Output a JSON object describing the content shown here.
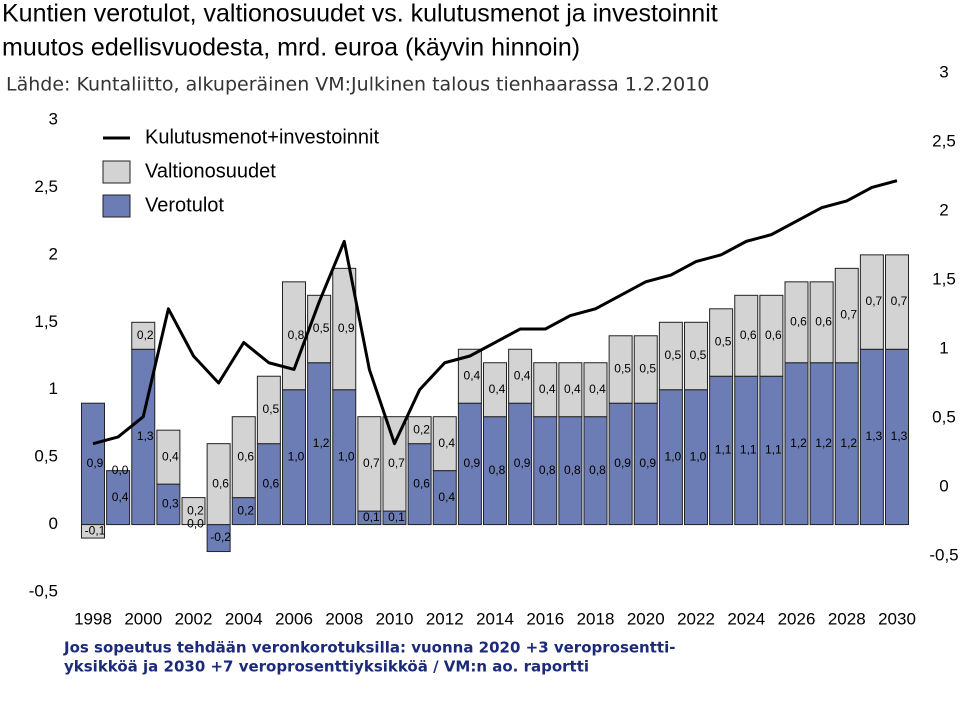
{
  "chart_data": {
    "type": "bar",
    "title": [
      "Kuntien verotulot, valtionosuudet vs. kulutusmenot ja investoinnit",
      "muutos edellisvuodesta, mrd. euroa (käyvin hinnoin)"
    ],
    "source": "Lähde: Kuntaliitto, alkuperäinen VM:Julkinen talous tienhaarassa 1.2.2010",
    "footnote": [
      "Jos sopeutus tehdään veronkorotuksilla: vuonna 2020 +3 veroprosentti-",
      "yksikköä  ja 2030 +7 veroprosenttiyksikköä / VM:n ao. raportti"
    ],
    "categories": [
      "1998",
      null,
      "2000",
      null,
      "2002",
      null,
      "2004",
      null,
      "2006",
      null,
      "2008",
      null,
      "2010",
      null,
      "2012",
      null,
      "2014",
      null,
      "2016",
      null,
      "2018",
      null,
      "2020",
      null,
      "2022",
      null,
      "2024",
      null,
      "2026",
      null,
      "2028",
      null,
      "2030"
    ],
    "series": [
      {
        "name": "Kulutusmenot+investoinnit",
        "type": "line",
        "color": "#000000",
        "values": [
          0.6,
          0.65,
          0.8,
          1.6,
          1.25,
          1.05,
          1.35,
          1.2,
          1.15,
          1.65,
          2.1,
          1.15,
          0.6,
          1.0,
          1.2,
          1.25,
          1.35,
          1.45,
          1.45,
          1.55,
          1.6,
          1.7,
          1.8,
          1.85,
          1.95,
          2.0,
          2.1,
          2.15,
          2.25,
          2.35,
          2.4,
          2.5,
          2.55
        ]
      },
      {
        "name": "Valtionosuudet",
        "type": "bar",
        "color": "#d3d3d3",
        "values": [
          -0.1,
          0.0,
          0.2,
          0.4,
          0.2,
          0.6,
          0.6,
          0.5,
          0.8,
          0.5,
          0.9,
          0.7,
          0.7,
          0.2,
          0.4,
          0.4,
          0.4,
          0.4,
          0.4,
          0.4,
          0.4,
          0.5,
          0.5,
          0.5,
          0.5,
          0.5,
          0.6,
          0.6,
          0.6,
          0.6,
          0.7,
          0.7,
          0.7
        ],
        "value_labels": [
          "-0,1",
          "0,0",
          "0,2",
          "0,4",
          "0,2",
          "0,6",
          "0,6",
          "0,5",
          "0,8",
          "0,5",
          "0,9",
          "0,7",
          "0,7",
          "0,2",
          "0,4",
          "0,4",
          "0,4",
          "0,4",
          "0,4",
          "0,4",
          "0,4",
          "0,5",
          "0,5",
          "0,5",
          "0,5",
          "0,5",
          "0,6",
          "0,6",
          "0,6",
          "0,6",
          "0,7",
          "0,7",
          "0,7"
        ]
      },
      {
        "name": "Verotulot",
        "type": "bar",
        "color": "#6c7cb4",
        "values": [
          0.9,
          0.4,
          1.3,
          0.3,
          0.0,
          -0.2,
          0.2,
          0.6,
          1.0,
          1.2,
          1.0,
          0.1,
          0.1,
          0.6,
          0.4,
          0.9,
          0.8,
          0.9,
          0.8,
          0.8,
          0.8,
          0.9,
          0.9,
          1.0,
          1.0,
          1.1,
          1.1,
          1.1,
          1.2,
          1.2,
          1.2,
          1.3,
          1.3
        ],
        "value_labels": [
          "0,9",
          "0,4",
          "1,3",
          "0,3",
          "0,0",
          "-0,2",
          "0,2",
          "0,6",
          "1,0",
          "1,2",
          "1,0",
          "0,1",
          "0,1",
          "0,6",
          "0,4",
          "0,9",
          "0,8",
          "0,9",
          "0,8",
          "0,8",
          "0,8",
          "0,9",
          "0,9",
          "1,0",
          "1,0",
          "1,1",
          "1,1",
          "1,1",
          "1,2",
          "1,2",
          "1,2",
          "1,3",
          "1,3"
        ]
      }
    ],
    "ylim": [
      -0.5,
      3
    ],
    "yticks": [
      {
        "value": -0.5,
        "label": "-0,5"
      },
      0,
      {
        "value": 0.5,
        "label": "0,5"
      },
      1,
      {
        "value": 1.5,
        "label": "1,5"
      },
      2,
      {
        "value": 2.5,
        "label": "2,5"
      },
      3
    ],
    "y2lim": [
      -0.5,
      3
    ],
    "y2ticks": [
      {
        "value": -0.5,
        "label": "-0,5"
      },
      0,
      {
        "value": 0.5,
        "label": "0,5"
      },
      1,
      {
        "value": 1.5,
        "label": "1,5"
      },
      2,
      {
        "value": 2.5,
        "label": "2,5"
      },
      3
    ],
    "legend": "top-left",
    "grid": false
  }
}
